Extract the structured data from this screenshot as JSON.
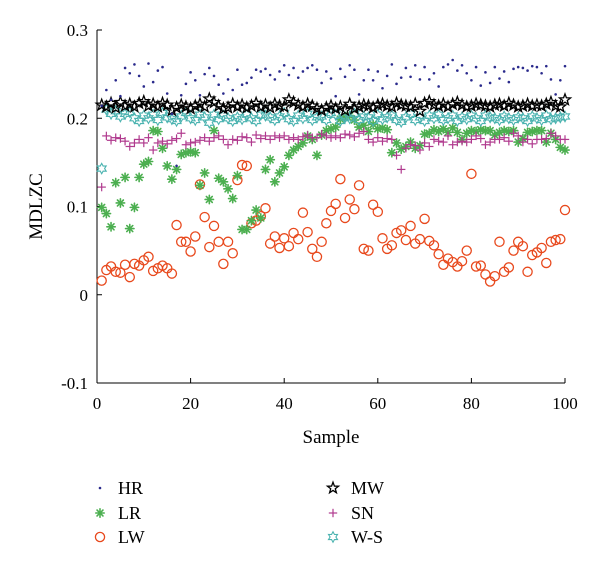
{
  "chart_data": {
    "type": "scatter",
    "xlabel": "Sample",
    "ylabel": "MDLZC",
    "xlim": [
      0,
      100
    ],
    "ylim": [
      -0.1,
      0.3
    ],
    "x_ticks": [
      0,
      20,
      40,
      60,
      80,
      100
    ],
    "y_ticks": [
      -0.1,
      0,
      0.1,
      0.2,
      0.3
    ],
    "x_tick_labels": [
      "0",
      "20",
      "40",
      "60",
      "80",
      "100"
    ],
    "y_tick_labels": [
      "-0.1",
      "0",
      "0.1",
      "0.2",
      "0.3"
    ],
    "grid": false,
    "legend_position": "bottom",
    "series": [
      {
        "name": "HR",
        "marker": "dot",
        "color": "#2a2a8c",
        "x": [
          1,
          2,
          3,
          4,
          5,
          6,
          7,
          8,
          9,
          10,
          11,
          12,
          13,
          14,
          15,
          16,
          17,
          18,
          19,
          20,
          21,
          22,
          23,
          24,
          25,
          26,
          27,
          28,
          29,
          30,
          31,
          32,
          33,
          34,
          35,
          36,
          37,
          38,
          39,
          40,
          41,
          42,
          43,
          44,
          45,
          46,
          47,
          48,
          49,
          50,
          51,
          52,
          53,
          54,
          55,
          56,
          57,
          58,
          59,
          60,
          61,
          62,
          63,
          64,
          65,
          66,
          67,
          68,
          69,
          70,
          71,
          72,
          73,
          74,
          75,
          76,
          77,
          78,
          79,
          80,
          81,
          82,
          83,
          84,
          85,
          86,
          87,
          88,
          89,
          90,
          91,
          92,
          93,
          94,
          95,
          96,
          97,
          98,
          99,
          100
        ],
        "y": [
          0.214,
          0.232,
          0.221,
          0.243,
          0.225,
          0.257,
          0.251,
          0.261,
          0.248,
          0.236,
          0.262,
          0.241,
          0.254,
          0.258,
          0.228,
          0.205,
          0.146,
          0.226,
          0.239,
          0.252,
          0.243,
          0.226,
          0.25,
          0.257,
          0.248,
          0.238,
          0.228,
          0.244,
          0.232,
          0.255,
          0.238,
          0.24,
          0.246,
          0.255,
          0.253,
          0.256,
          0.249,
          0.244,
          0.253,
          0.26,
          0.249,
          0.257,
          0.246,
          0.253,
          0.257,
          0.26,
          0.255,
          0.24,
          0.253,
          0.245,
          0.225,
          0.256,
          0.247,
          0.26,
          0.255,
          0.227,
          0.243,
          0.255,
          0.243,
          0.253,
          0.234,
          0.248,
          0.261,
          0.239,
          0.246,
          0.257,
          0.247,
          0.26,
          0.244,
          0.258,
          0.244,
          0.251,
          0.236,
          0.258,
          0.261,
          0.266,
          0.254,
          0.26,
          0.251,
          0.243,
          0.258,
          0.237,
          0.252,
          0.24,
          0.258,
          0.245,
          0.253,
          0.241,
          0.256,
          0.258,
          0.257,
          0.254,
          0.259,
          0.258,
          0.251,
          0.259,
          0.244,
          0.227,
          0.243,
          0.259
        ]
      },
      {
        "name": "LR",
        "marker": "asterisk",
        "color": "#4caf50",
        "x": [
          1,
          2,
          3,
          4,
          5,
          6,
          7,
          8,
          9,
          10,
          11,
          12,
          13,
          14,
          15,
          16,
          17,
          18,
          19,
          20,
          21,
          22,
          23,
          24,
          25,
          26,
          27,
          28,
          29,
          30,
          31,
          32,
          33,
          34,
          35,
          36,
          37,
          38,
          39,
          40,
          41,
          42,
          43,
          44,
          45,
          46,
          47,
          48,
          49,
          50,
          51,
          52,
          53,
          54,
          55,
          56,
          57,
          58,
          59,
          60,
          61,
          62,
          63,
          64,
          65,
          66,
          67,
          68,
          69,
          70,
          71,
          72,
          73,
          74,
          75,
          76,
          77,
          78,
          79,
          80,
          81,
          82,
          83,
          84,
          85,
          86,
          87,
          88,
          89,
          90,
          91,
          92,
          93,
          94,
          95,
          96,
          97,
          98,
          99,
          100
        ],
        "y": [
          0.099,
          0.092,
          0.077,
          0.127,
          0.104,
          0.133,
          0.075,
          0.099,
          0.133,
          0.148,
          0.151,
          0.186,
          0.185,
          0.166,
          0.146,
          0.131,
          0.142,
          0.159,
          0.161,
          0.162,
          0.161,
          0.124,
          0.138,
          0.108,
          0.186,
          0.132,
          0.128,
          0.12,
          0.109,
          0.135,
          0.074,
          0.074,
          0.084,
          0.096,
          0.087,
          0.142,
          0.153,
          0.128,
          0.138,
          0.145,
          0.158,
          0.164,
          0.168,
          0.172,
          0.18,
          0.176,
          0.158,
          0.181,
          0.186,
          0.188,
          0.19,
          0.199,
          0.201,
          0.203,
          0.198,
          0.19,
          0.192,
          0.185,
          0.193,
          0.188,
          0.189,
          0.187,
          0.161,
          0.172,
          0.165,
          0.168,
          0.173,
          0.166,
          0.169,
          0.182,
          0.183,
          0.187,
          0.185,
          0.188,
          0.184,
          0.189,
          0.184,
          0.176,
          0.183,
          0.186,
          0.185,
          0.187,
          0.186,
          0.186,
          0.181,
          0.184,
          0.186,
          0.185,
          0.186,
          0.173,
          0.177,
          0.184,
          0.185,
          0.186,
          0.186,
          0.173,
          0.183,
          0.176,
          0.167,
          0.164
        ]
      },
      {
        "name": "LW",
        "marker": "circle",
        "color": "#e8491d",
        "x": [
          1,
          2,
          3,
          4,
          5,
          6,
          7,
          8,
          9,
          10,
          11,
          12,
          13,
          14,
          15,
          16,
          17,
          18,
          19,
          20,
          21,
          22,
          23,
          24,
          25,
          26,
          27,
          28,
          29,
          30,
          31,
          32,
          33,
          34,
          35,
          36,
          37,
          38,
          39,
          40,
          41,
          42,
          43,
          44,
          45,
          46,
          47,
          48,
          49,
          50,
          51,
          52,
          53,
          54,
          55,
          56,
          57,
          58,
          59,
          60,
          61,
          62,
          63,
          64,
          65,
          66,
          67,
          68,
          69,
          70,
          71,
          72,
          73,
          74,
          75,
          76,
          77,
          78,
          79,
          80,
          81,
          82,
          83,
          84,
          85,
          86,
          87,
          88,
          89,
          90,
          91,
          92,
          93,
          94,
          95,
          96,
          97,
          98,
          99,
          100
        ],
        "y": [
          0.016,
          0.028,
          0.032,
          0.026,
          0.025,
          0.034,
          0.02,
          0.035,
          0.033,
          0.039,
          0.043,
          0.027,
          0.03,
          0.033,
          0.03,
          0.024,
          0.079,
          0.06,
          0.06,
          0.049,
          0.066,
          0.125,
          0.088,
          0.054,
          0.078,
          0.06,
          0.035,
          0.06,
          0.047,
          0.13,
          0.147,
          0.146,
          0.081,
          0.084,
          0.089,
          0.098,
          0.058,
          0.066,
          0.053,
          0.064,
          0.055,
          0.07,
          0.063,
          0.093,
          0.071,
          0.052,
          0.043,
          0.06,
          0.081,
          0.095,
          0.103,
          0.131,
          0.087,
          0.108,
          0.097,
          0.124,
          0.052,
          0.05,
          0.102,
          0.094,
          0.064,
          0.052,
          0.056,
          0.07,
          0.073,
          0.062,
          0.078,
          0.058,
          0.063,
          0.086,
          0.061,
          0.056,
          0.046,
          0.034,
          0.041,
          0.037,
          0.032,
          0.038,
          0.05,
          0.137,
          0.032,
          0.033,
          0.023,
          0.015,
          0.021,
          0.06,
          0.026,
          0.031,
          0.05,
          0.06,
          0.055,
          0.026,
          0.045,
          0.048,
          0.053,
          0.036,
          0.06,
          0.062,
          0.063,
          0.096
        ]
      },
      {
        "name": "MW",
        "marker": "star",
        "color": "#000000",
        "x": [
          1,
          2,
          3,
          4,
          5,
          6,
          7,
          8,
          9,
          10,
          11,
          12,
          13,
          14,
          15,
          16,
          17,
          18,
          19,
          20,
          21,
          22,
          23,
          24,
          25,
          26,
          27,
          28,
          29,
          30,
          31,
          32,
          33,
          34,
          35,
          36,
          37,
          38,
          39,
          40,
          41,
          42,
          43,
          44,
          45,
          46,
          47,
          48,
          49,
          50,
          51,
          52,
          53,
          54,
          55,
          56,
          57,
          58,
          59,
          60,
          61,
          62,
          63,
          64,
          65,
          66,
          67,
          68,
          69,
          70,
          71,
          72,
          73,
          74,
          75,
          76,
          77,
          78,
          79,
          80,
          81,
          82,
          83,
          84,
          85,
          86,
          87,
          88,
          89,
          90,
          91,
          92,
          93,
          94,
          95,
          96,
          97,
          98,
          99,
          100
        ],
        "y": [
          0.215,
          0.213,
          0.217,
          0.212,
          0.218,
          0.214,
          0.216,
          0.213,
          0.217,
          0.219,
          0.214,
          0.216,
          0.213,
          0.217,
          0.215,
          0.209,
          0.212,
          0.215,
          0.213,
          0.211,
          0.214,
          0.216,
          0.213,
          0.222,
          0.218,
          0.214,
          0.211,
          0.212,
          0.216,
          0.213,
          0.215,
          0.212,
          0.214,
          0.217,
          0.213,
          0.215,
          0.212,
          0.216,
          0.214,
          0.213,
          0.221,
          0.218,
          0.215,
          0.213,
          0.216,
          0.214,
          0.211,
          0.209,
          0.212,
          0.214,
          0.211,
          0.213,
          0.209,
          0.216,
          0.211,
          0.213,
          0.215,
          0.214,
          0.212,
          0.215,
          0.216,
          0.214,
          0.213,
          0.217,
          0.215,
          0.214,
          0.213,
          0.216,
          0.208,
          0.217,
          0.219,
          0.215,
          0.214,
          0.216,
          0.213,
          0.216,
          0.218,
          0.215,
          0.213,
          0.214,
          0.216,
          0.215,
          0.214,
          0.213,
          0.215,
          0.216,
          0.214,
          0.217,
          0.215,
          0.213,
          0.214,
          0.216,
          0.214,
          0.215,
          0.214,
          0.216,
          0.218,
          0.214,
          0.213,
          0.221
        ]
      },
      {
        "name": "SN",
        "marker": "plus",
        "color": "#b03a8e",
        "x": [
          1,
          2,
          3,
          4,
          5,
          6,
          7,
          8,
          9,
          10,
          11,
          12,
          13,
          14,
          15,
          16,
          17,
          18,
          19,
          20,
          21,
          22,
          23,
          24,
          25,
          26,
          27,
          28,
          29,
          30,
          31,
          32,
          33,
          34,
          35,
          36,
          37,
          38,
          39,
          40,
          41,
          42,
          43,
          44,
          45,
          46,
          47,
          48,
          49,
          50,
          51,
          52,
          53,
          54,
          55,
          56,
          57,
          58,
          59,
          60,
          61,
          62,
          63,
          64,
          65,
          66,
          67,
          68,
          69,
          70,
          71,
          72,
          73,
          74,
          75,
          76,
          77,
          78,
          79,
          80,
          81,
          82,
          83,
          84,
          85,
          86,
          87,
          88,
          89,
          90,
          91,
          92,
          93,
          94,
          95,
          96,
          97,
          98,
          99,
          100
        ],
        "y": [
          0.122,
          0.18,
          0.175,
          0.178,
          0.177,
          0.174,
          0.168,
          0.172,
          0.176,
          0.172,
          0.178,
          0.164,
          0.172,
          0.174,
          0.171,
          0.175,
          0.177,
          0.183,
          0.17,
          0.172,
          0.173,
          0.175,
          0.178,
          0.174,
          0.178,
          0.18,
          0.176,
          0.17,
          0.176,
          0.175,
          0.179,
          0.178,
          0.173,
          0.181,
          0.177,
          0.18,
          0.176,
          0.18,
          0.178,
          0.18,
          0.176,
          0.178,
          0.176,
          0.179,
          0.181,
          0.178,
          0.178,
          0.182,
          0.18,
          0.178,
          0.18,
          0.178,
          0.182,
          0.181,
          0.179,
          0.183,
          0.185,
          0.176,
          0.173,
          0.178,
          0.174,
          0.177,
          0.176,
          0.158,
          0.142,
          0.166,
          0.17,
          0.169,
          0.164,
          0.172,
          0.168,
          0.176,
          0.174,
          0.173,
          0.18,
          0.17,
          0.173,
          0.174,
          0.173,
          0.176,
          0.18,
          0.177,
          0.17,
          0.173,
          0.176,
          0.176,
          0.178,
          0.174,
          0.183,
          0.18,
          0.173,
          0.176,
          0.171,
          0.176,
          0.176,
          0.177,
          0.183,
          0.18,
          0.176,
          0.176
        ]
      },
      {
        "name": "W-S",
        "marker": "hexagram",
        "color": "#4bb3b0",
        "x": [
          1,
          2,
          3,
          4,
          5,
          6,
          7,
          8,
          9,
          10,
          11,
          12,
          13,
          14,
          15,
          16,
          17,
          18,
          19,
          20,
          21,
          22,
          23,
          24,
          25,
          26,
          27,
          28,
          29,
          30,
          31,
          32,
          33,
          34,
          35,
          36,
          37,
          38,
          39,
          40,
          41,
          42,
          43,
          44,
          45,
          46,
          47,
          48,
          49,
          50,
          51,
          52,
          53,
          54,
          55,
          56,
          57,
          58,
          59,
          60,
          61,
          62,
          63,
          64,
          65,
          66,
          67,
          68,
          69,
          70,
          71,
          72,
          73,
          74,
          75,
          76,
          77,
          78,
          79,
          80,
          81,
          82,
          83,
          84,
          85,
          86,
          87,
          88,
          89,
          90,
          91,
          92,
          93,
          94,
          95,
          96,
          97,
          98,
          99,
          100
        ],
        "y": [
          0.143,
          0.21,
          0.205,
          0.208,
          0.202,
          0.205,
          0.207,
          0.2,
          0.197,
          0.203,
          0.2,
          0.204,
          0.198,
          0.206,
          0.201,
          0.199,
          0.197,
          0.202,
          0.206,
          0.2,
          0.198,
          0.204,
          0.201,
          0.195,
          0.204,
          0.199,
          0.203,
          0.2,
          0.197,
          0.201,
          0.199,
          0.204,
          0.2,
          0.197,
          0.204,
          0.203,
          0.201,
          0.198,
          0.202,
          0.206,
          0.199,
          0.197,
          0.203,
          0.2,
          0.205,
          0.198,
          0.201,
          0.202,
          0.198,
          0.206,
          0.204,
          0.197,
          0.201,
          0.2,
          0.205,
          0.198,
          0.202,
          0.201,
          0.197,
          0.204,
          0.199,
          0.201,
          0.203,
          0.198,
          0.196,
          0.201,
          0.205,
          0.198,
          0.201,
          0.197,
          0.203,
          0.2,
          0.204,
          0.198,
          0.2,
          0.203,
          0.197,
          0.201,
          0.199,
          0.203,
          0.2,
          0.197,
          0.203,
          0.201,
          0.2,
          0.198,
          0.202,
          0.2,
          0.198,
          0.201,
          0.2,
          0.197,
          0.202,
          0.2,
          0.198,
          0.203,
          0.199,
          0.2,
          0.201,
          0.202
        ]
      }
    ]
  }
}
